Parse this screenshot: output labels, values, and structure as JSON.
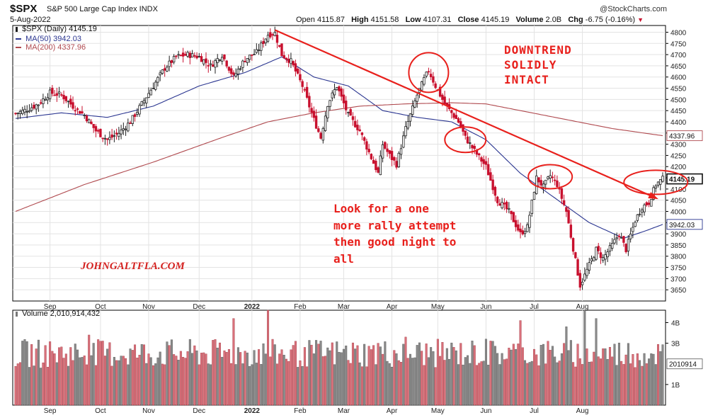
{
  "header": {
    "symbol": "$SPX",
    "description": "S&P 500 Large Cap Index INDX",
    "date": "5-Aug-2022",
    "source": "@StockCharts.com",
    "open_label": "Open",
    "open": "4115.87",
    "high_label": "High",
    "high": "4151.58",
    "low_label": "Low",
    "low": "4107.31",
    "close_label": "Close",
    "close": "4145.19",
    "volume_label": "Volume",
    "volume": "2.0B",
    "chg_label": "Chg",
    "chg": "-6.75 (-0.16%)"
  },
  "legend": {
    "price": "$SPX (Daily) 4145.19",
    "ma50": "MA(50) 3942.03",
    "ma200": "MA(200) 4337.96",
    "volume": "Volume 2,010,914,432"
  },
  "annotations": {
    "downtrend": "DOWNTREND\nSOLIDLY\nINTACT",
    "rally": "Look for a one\nmore rally attempt\nthen good night to\nall",
    "site": "JOHNGALTFLA.COM"
  },
  "colors": {
    "up": "#1f1f1f",
    "down": "#c8102e",
    "ma50": "#2a3590",
    "ma200": "#b04a4f",
    "annotation": "#e8201c",
    "vol_up": "#8a8a8a",
    "vol_down": "#d9707a",
    "grid": "#e3e3e3"
  },
  "chart_data": [
    {
      "type": "candlestick",
      "title": "$SPX S&P 500 Large Cap Index INDX",
      "ylim": [
        3600,
        4830
      ],
      "y_ticks": [
        3650,
        3700,
        3750,
        3800,
        3850,
        3900,
        3950,
        4000,
        4050,
        4100,
        4150,
        4200,
        4250,
        4300,
        4350,
        4400,
        4450,
        4500,
        4550,
        4600,
        4650,
        4700,
        4750,
        4800
      ],
      "x_ticks": [
        "Sep",
        "Oct",
        "Nov",
        "Dec",
        "2022",
        "Feb",
        "Mar",
        "Apr",
        "May",
        "Jun",
        "Jul",
        "Aug"
      ],
      "price_series": {
        "name": "$SPX (Daily)",
        "anchors": [
          [
            0,
            4437
          ],
          [
            5,
            4455
          ],
          [
            10,
            4480
          ],
          [
            15,
            4530
          ],
          [
            20,
            4520
          ],
          [
            25,
            4470
          ],
          [
            30,
            4430
          ],
          [
            35,
            4360
          ],
          [
            40,
            4320
          ],
          [
            45,
            4350
          ],
          [
            50,
            4400
          ],
          [
            55,
            4480
          ],
          [
            60,
            4560
          ],
          [
            65,
            4640
          ],
          [
            70,
            4690
          ],
          [
            75,
            4700
          ],
          [
            80,
            4690
          ],
          [
            85,
            4650
          ],
          [
            90,
            4700
          ],
          [
            95,
            4600
          ],
          [
            100,
            4680
          ],
          [
            105,
            4710
          ],
          [
            110,
            4790
          ],
          [
            113,
            4796
          ],
          [
            116,
            4700
          ],
          [
            120,
            4670
          ],
          [
            125,
            4560
          ],
          [
            130,
            4410
          ],
          [
            133,
            4330
          ],
          [
            136,
            4480
          ],
          [
            140,
            4560
          ],
          [
            145,
            4430
          ],
          [
            150,
            4360
          ],
          [
            155,
            4240
          ],
          [
            158,
            4170
          ],
          [
            160,
            4300
          ],
          [
            163,
            4250
          ],
          [
            166,
            4210
          ],
          [
            170,
            4370
          ],
          [
            175,
            4520
          ],
          [
            178,
            4590
          ],
          [
            180,
            4630
          ],
          [
            183,
            4560
          ],
          [
            187,
            4480
          ],
          [
            190,
            4440
          ],
          [
            193,
            4400
          ],
          [
            196,
            4330
          ],
          [
            200,
            4270
          ],
          [
            205,
            4200
          ],
          [
            210,
            4050
          ],
          [
            215,
            4000
          ],
          [
            220,
            3900
          ],
          [
            223,
            3930
          ],
          [
            227,
            4150
          ],
          [
            230,
            4110
          ],
          [
            233,
            4160
          ],
          [
            236,
            4120
          ],
          [
            240,
            4000
          ],
          [
            244,
            3780
          ],
          [
            246,
            3670
          ],
          [
            250,
            3760
          ],
          [
            253,
            3830
          ],
          [
            256,
            3790
          ],
          [
            260,
            3850
          ],
          [
            263,
            3900
          ],
          [
            266,
            3830
          ],
          [
            270,
            3960
          ],
          [
            273,
            4020
          ],
          [
            276,
            4040
          ],
          [
            279,
            4120
          ],
          [
            282,
            4145
          ]
        ]
      },
      "ma_series": [
        {
          "name": "MA(50)",
          "value": 3942.03,
          "anchors": [
            [
              0,
              4415
            ],
            [
              20,
              4440
            ],
            [
              40,
              4420
            ],
            [
              60,
              4470
            ],
            [
              80,
              4560
            ],
            [
              100,
              4620
            ],
            [
              116,
              4690
            ],
            [
              130,
              4600
            ],
            [
              145,
              4560
            ],
            [
              160,
              4450
            ],
            [
              175,
              4420
            ],
            [
              190,
              4400
            ],
            [
              205,
              4320
            ],
            [
              220,
              4170
            ],
            [
              235,
              4060
            ],
            [
              250,
              3950
            ],
            [
              265,
              3880
            ],
            [
              275,
              3915
            ],
            [
              282,
              3942
            ]
          ]
        },
        {
          "name": "MA(200)",
          "value": 4337.96,
          "anchors": [
            [
              0,
              4000
            ],
            [
              30,
              4120
            ],
            [
              60,
              4220
            ],
            [
              90,
              4330
            ],
            [
              110,
              4400
            ],
            [
              130,
              4440
            ],
            [
              150,
              4470
            ],
            [
              170,
              4480
            ],
            [
              190,
              4485
            ],
            [
              205,
              4480
            ],
            [
              220,
              4450
            ],
            [
              240,
              4410
            ],
            [
              260,
              4370
            ],
            [
              282,
              4338
            ]
          ]
        }
      ],
      "last_close": 4145.19
    },
    {
      "type": "bar",
      "title": "Volume",
      "ylim": [
        0,
        4.6
      ],
      "y_ticks": [
        1,
        3,
        4
      ],
      "y_tick_labels": [
        "1B",
        "3B",
        "4B"
      ],
      "last_value": 2010914,
      "last_value_label": "2010914",
      "x_ticks": [
        "Sep",
        "Oct",
        "Nov",
        "Dec",
        "2022",
        "Feb",
        "Mar",
        "Apr",
        "May",
        "Jun",
        "Jul",
        "Aug"
      ],
      "typical_range_billions": [
        1.8,
        3.2
      ],
      "spikes_billions": [
        [
          32,
          3.4
        ],
        [
          95,
          4.2
        ],
        [
          110,
          4.6
        ],
        [
          126,
          2.8
        ],
        [
          158,
          3.0
        ],
        [
          170,
          3.3
        ],
        [
          205,
          3.2
        ],
        [
          220,
          4.1
        ],
        [
          240,
          3.8
        ],
        [
          248,
          4.6
        ],
        [
          253,
          4.2
        ]
      ]
    }
  ]
}
